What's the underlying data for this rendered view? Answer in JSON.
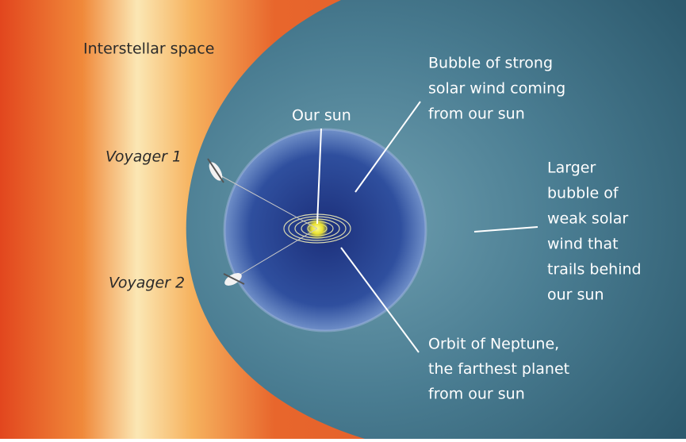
{
  "labels": {
    "interstellar": "Interstellar space",
    "our_sun": "Our sun",
    "strong_bubble": [
      "Bubble of strong",
      "solar wind coming",
      "from our sun"
    ],
    "voyager1": "Voyager 1",
    "voyager2": "Voyager 2",
    "weak_bubble": [
      "Larger",
      "bubble of",
      "weak solar",
      "wind that",
      "trails behind",
      "our sun"
    ],
    "neptune": [
      "Orbit of Neptune,",
      "the farthest planet",
      "from our sun"
    ]
  }
}
